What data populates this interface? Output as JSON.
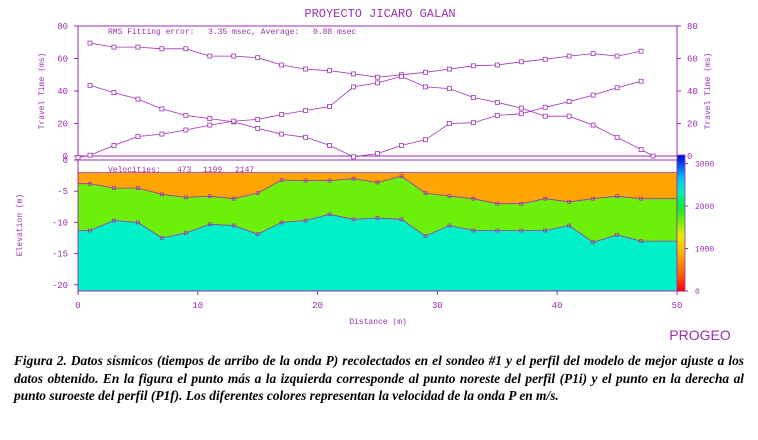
{
  "figure": {
    "title": "PROYECTO JICARO GALAN",
    "brand": "PROGEO",
    "colors": {
      "purple": "#a030b8",
      "axis": "#9a2fb0",
      "orange": "#ffa400",
      "green": "#6cf00a",
      "cyan": "#00f0c8",
      "text": "#9a2fb0"
    }
  },
  "chart_data": [
    {
      "type": "line",
      "panel": "travel-time",
      "annotation": {
        "label": "RMS Fitting error:",
        "value": "3.35 msec, Average:",
        "avg": "0.88 msec"
      },
      "ylabel_left": "Travel Time (ms)",
      "ylabel_right": "Travel Time (ms)",
      "xlim": [
        0,
        50
      ],
      "ylim": [
        0,
        80
      ],
      "yticks": [
        0,
        20,
        40,
        60,
        80
      ],
      "grid": false,
      "series": [
        {
          "x": [
            1,
            3,
            5,
            7,
            9,
            11,
            13,
            15,
            17,
            19,
            21,
            23,
            25,
            27,
            29,
            31,
            33,
            35,
            37,
            39,
            41,
            43,
            45,
            47
          ],
          "y": [
            69.5,
            67,
            67,
            66,
            66,
            61.5,
            61.5,
            60.5,
            56,
            53.5,
            52.5,
            50.5,
            48.5,
            50,
            51.5,
            53.5,
            55.5,
            56,
            58,
            59.5,
            61.5,
            63,
            61.5,
            64.5
          ]
        },
        {
          "x": [
            1,
            3,
            5,
            7,
            9,
            11,
            13,
            15,
            17,
            19,
            21,
            23,
            25,
            27,
            29,
            31,
            33,
            35,
            37,
            39,
            41,
            43,
            45,
            47
          ],
          "y": [
            43.5,
            39,
            35,
            29,
            25,
            23,
            21,
            17,
            13.5,
            11.5,
            6.5,
            -0.5,
            1.5,
            6.5,
            10,
            20,
            20.5,
            25,
            26,
            30,
            33.5,
            37.5,
            42,
            46
          ]
        },
        {
          "x": [
            0,
            1,
            3,
            5,
            7,
            9,
            11,
            13,
            15,
            17,
            19,
            21,
            23,
            25,
            27,
            29,
            31,
            33,
            35,
            37,
            39,
            41,
            43,
            45,
            47,
            48
          ],
          "y": [
            -1,
            0.5,
            6.5,
            12,
            13.5,
            16,
            19,
            21.5,
            22.5,
            25.5,
            28,
            30.5,
            42.5,
            45,
            49,
            42.5,
            41.5,
            36,
            33,
            29.5,
            24.5,
            24.5,
            19,
            11.5,
            4,
            0
          ]
        }
      ]
    },
    {
      "type": "area",
      "panel": "elevation-model",
      "annotation": {
        "label": "Velocities:",
        "v1": "473",
        "v2": "1199",
        "v3": "2147"
      },
      "xlabel": "Distance (m)",
      "ylabel": "Elevation (m)",
      "xlim": [
        0,
        50
      ],
      "ylim": [
        -21,
        0
      ],
      "xticks": [
        0,
        10,
        20,
        30,
        40,
        50
      ],
      "yticks": [
        0,
        -5,
        -10,
        -15,
        -20
      ],
      "surface_top": -2,
      "layer_boundary_1": {
        "x": [
          0,
          1,
          3,
          5,
          7,
          9,
          11,
          13,
          15,
          17,
          19,
          21,
          23,
          25,
          27,
          29,
          31,
          33,
          35,
          37,
          39,
          41,
          43,
          45,
          47,
          50
        ],
        "y": [
          -3.8,
          -3.8,
          -4.5,
          -4.5,
          -5.5,
          -6,
          -5.8,
          -6.2,
          -5.3,
          -3.2,
          -3.3,
          -3.3,
          -3,
          -3.6,
          -2.6,
          -5.3,
          -5.8,
          -6.2,
          -7,
          -7,
          -6.2,
          -6.7,
          -6.2,
          -5.8,
          -6.2,
          -6.2
        ]
      },
      "layer_boundary_2": {
        "x": [
          0,
          1,
          3,
          5,
          7,
          9,
          11,
          13,
          15,
          17,
          19,
          21,
          23,
          25,
          27,
          29,
          31,
          33,
          35,
          37,
          39,
          41,
          43,
          45,
          47,
          50
        ],
        "y": [
          -11.3,
          -11.3,
          -9.7,
          -10,
          -12.5,
          -11.7,
          -10.3,
          -10.5,
          -11.9,
          -10,
          -9.7,
          -8.7,
          -9.5,
          -9.3,
          -9.5,
          -12.2,
          -10.5,
          -11.3,
          -11.3,
          -11.3,
          -11.3,
          -10.5,
          -13.2,
          -12,
          -13,
          -13
        ]
      },
      "bottom": -21,
      "colorbar": {
        "ticks": [
          0,
          1000,
          2000,
          3000
        ],
        "range": [
          0,
          3200
        ]
      }
    }
  ],
  "caption": "Figura 2. Datos sísmicos (tiempos de arribo de la onda P) recolectados en el sondeo #1 y el perfil del modelo de mejor ajuste a los datos obtenido.  En la figura el punto más a la izquierda corresponde al punto noreste del perfil (P1i) y el punto en la derecha al punto suroeste del perfil (P1f). Los diferentes colores representan la velocidad de la onda P en m/s."
}
